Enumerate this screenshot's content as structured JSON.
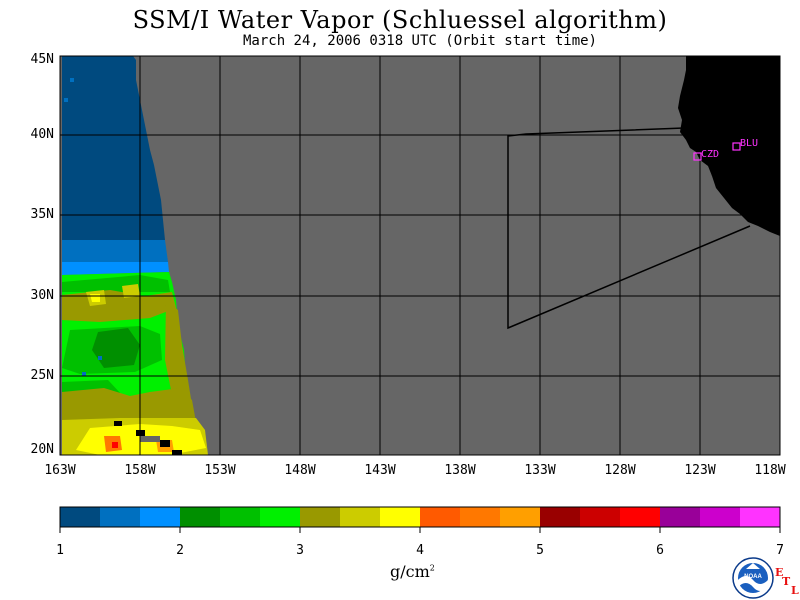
{
  "title": "SSM/I Water Vapor (Schluessel algorithm)",
  "subtitle": "March 24, 2006  0318 UTC  (Orbit start time)",
  "lat_labels": [
    "45N",
    "40N",
    "35N",
    "30N",
    "25N",
    "20N"
  ],
  "lon_labels": [
    "163W",
    "158W",
    "153W",
    "148W",
    "143W",
    "138W",
    "133W",
    "128W",
    "123W",
    "118W"
  ],
  "stations": [
    {
      "label": "CZD",
      "marker_color": "#ff33ff"
    },
    {
      "label": "BLU",
      "marker_color": "#ff33ff"
    }
  ],
  "colorbar": {
    "units_base": "g/cm",
    "units_exp": "2",
    "tick_labels": [
      "1",
      "2",
      "3",
      "4",
      "5",
      "6",
      "7"
    ],
    "colors": [
      "#004a7f",
      "#0070c0",
      "#0090ff",
      "#008f00",
      "#00c000",
      "#00f000",
      "#999900",
      "#cccc00",
      "#ffff00",
      "#ff5a00",
      "#ff7800",
      "#ff9f00",
      "#990000",
      "#cc0000",
      "#ff0000",
      "#990099",
      "#cc00cc",
      "#ff33ff"
    ]
  },
  "colors": {
    "no_data": "#666666",
    "land": "#000000"
  },
  "logo": {
    "name": "noaa-logo",
    "text": "NOAA"
  },
  "etl_text": {
    "e": "E",
    "t": "T",
    "l": "L"
  }
}
